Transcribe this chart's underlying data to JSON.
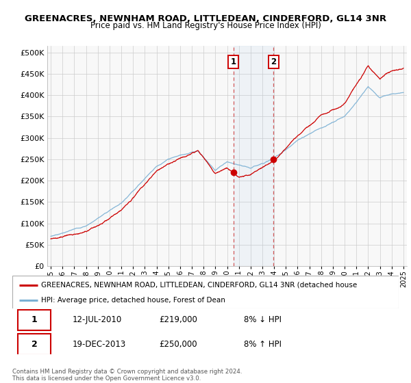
{
  "title_line1": "GREENACRES, NEWNHAM ROAD, LITTLEDEAN, CINDERFORD, GL14 3NR",
  "title_line2": "Price paid vs. HM Land Registry's House Price Index (HPI)",
  "ylabel_ticks": [
    "£0",
    "£50K",
    "£100K",
    "£150K",
    "£200K",
    "£250K",
    "£300K",
    "£350K",
    "£400K",
    "£450K",
    "£500K"
  ],
  "ytick_values": [
    0,
    50000,
    100000,
    150000,
    200000,
    250000,
    300000,
    350000,
    400000,
    450000,
    500000
  ],
  "ylim": [
    0,
    515000
  ],
  "xlim_start": 1994.7,
  "xlim_end": 2025.3,
  "xtick_years": [
    1995,
    1996,
    1997,
    1998,
    1999,
    2000,
    2001,
    2002,
    2003,
    2004,
    2005,
    2006,
    2007,
    2008,
    2009,
    2010,
    2011,
    2012,
    2013,
    2014,
    2015,
    2016,
    2017,
    2018,
    2019,
    2020,
    2021,
    2022,
    2023,
    2024,
    2025
  ],
  "red_color": "#cc0000",
  "blue_color": "#7ab0d4",
  "vline_color": "#cc3333",
  "sale1_year": 2010.53,
  "sale1_price": 219000,
  "sale2_year": 2013.96,
  "sale2_price": 250000,
  "legend_entry1": "GREENACRES, NEWNHAM ROAD, LITTLEDEAN, CINDERFORD, GL14 3NR (detached house",
  "legend_entry2": "HPI: Average price, detached house, Forest of Dean",
  "table_row1": [
    "1",
    "12-JUL-2010",
    "£219,000",
    "8% ↓ HPI"
  ],
  "table_row2": [
    "2",
    "19-DEC-2013",
    "£250,000",
    "8% ↑ HPI"
  ],
  "footnote": "Contains HM Land Registry data © Crown copyright and database right 2024.\nThis data is licensed under the Open Government Licence v3.0.",
  "grid_color": "#cccccc",
  "plot_bg": "#f8f8f8"
}
